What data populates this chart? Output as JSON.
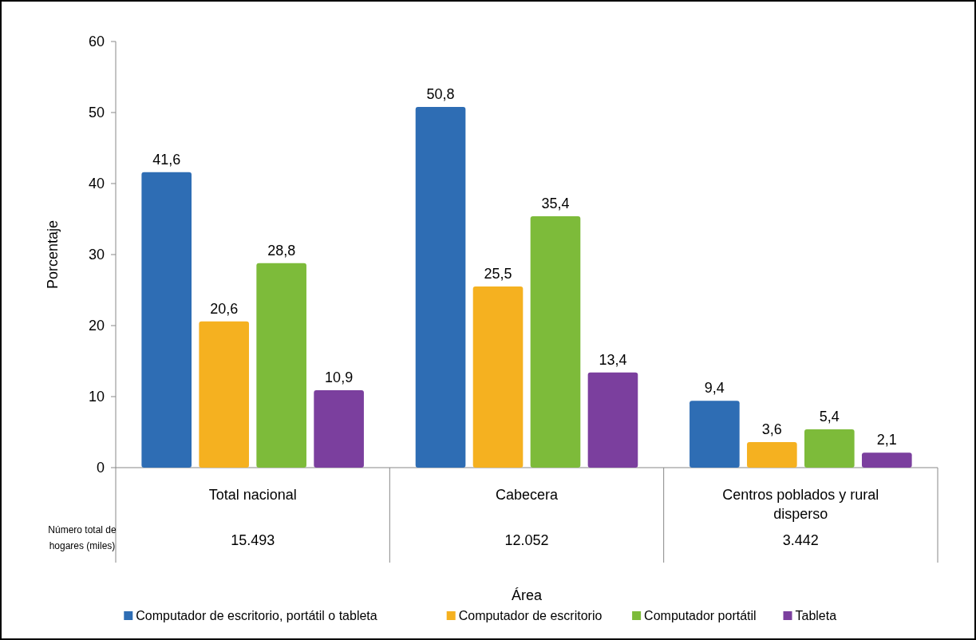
{
  "chart_data": {
    "type": "bar",
    "categories": [
      "Total nacional",
      "Cabecera",
      "Centros poblados y rural disperso"
    ],
    "series": [
      {
        "name": "Computador de escritorio, portátil o tableta",
        "color": "#2e6db4",
        "values": [
          41.6,
          50.8,
          9.4
        ],
        "value_labels": [
          "41,6",
          "50,8",
          "9,4"
        ]
      },
      {
        "name": "Computador de escritorio",
        "color": "#f5b120",
        "values": [
          20.6,
          25.5,
          3.6
        ],
        "value_labels": [
          "20,6",
          "25,5",
          "3,6"
        ]
      },
      {
        "name": "Computador portátil",
        "color": "#7dbb3a",
        "values": [
          28.8,
          35.4,
          5.4
        ],
        "value_labels": [
          "28,8",
          "35,4",
          "5,4"
        ]
      },
      {
        "name": "Tableta",
        "color": "#7b3f9e",
        "values": [
          10.9,
          13.4,
          2.1
        ],
        "value_labels": [
          "10,9",
          "13,4",
          "2,1"
        ]
      }
    ],
    "ylim": [
      0,
      60
    ],
    "yticks": [
      0,
      10,
      20,
      30,
      40,
      50,
      60
    ],
    "ylabel": "Porcentaje",
    "xlabel": "Área",
    "grid": false,
    "legend": "bottom",
    "annotations": [
      "Número total de hogares (miles)",
      "15.493",
      "12.052",
      "3.442"
    ]
  }
}
